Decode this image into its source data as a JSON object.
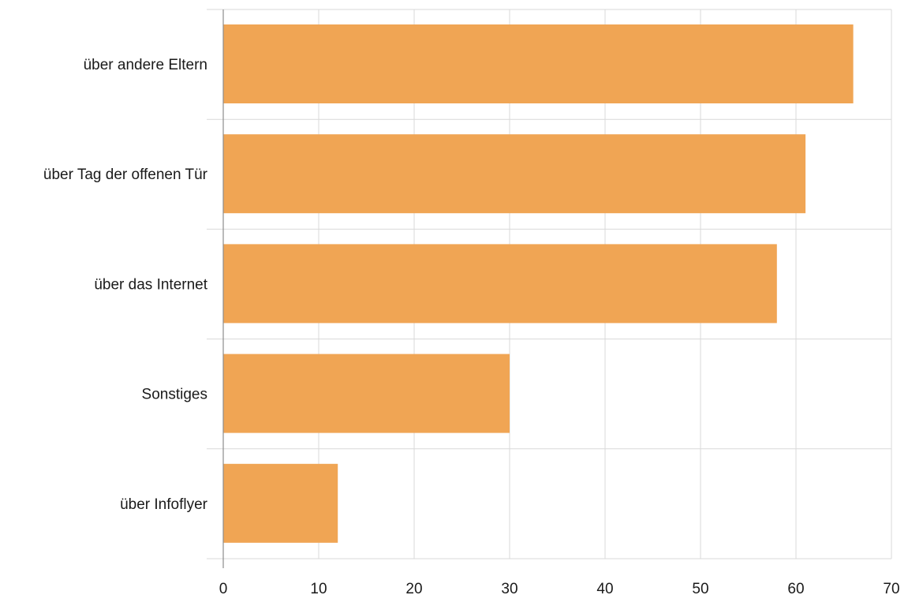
{
  "chart_data": {
    "type": "bar",
    "orientation": "horizontal",
    "categories": [
      "über andere Eltern",
      "über Tag der offenen Tür",
      "über das Internet",
      "Sonstiges",
      "über Infoflyer"
    ],
    "values": [
      66,
      61,
      58,
      30,
      12
    ],
    "title": "",
    "xlabel": "",
    "ylabel": "",
    "xlim": [
      0,
      70
    ],
    "xticks": [
      "0",
      "10",
      "20",
      "30",
      "40",
      "50",
      "60",
      "70"
    ],
    "grid": true,
    "bar_color": "#f0a554"
  }
}
